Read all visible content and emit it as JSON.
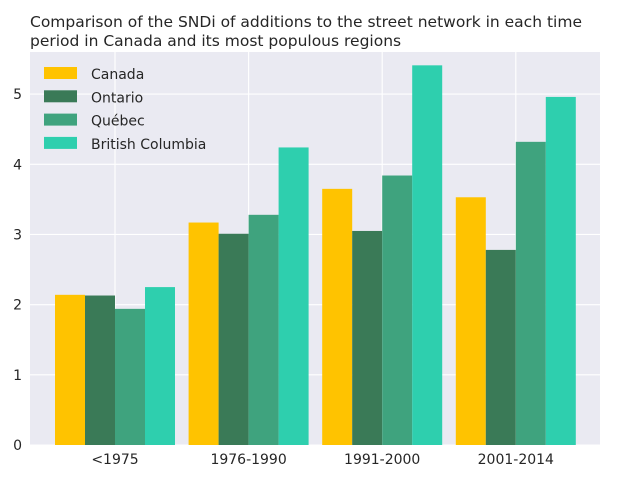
{
  "chart_data": {
    "type": "bar",
    "title_lines": [
      "Comparison of the SNDi of additions to the street network in each time",
      "period in Canada and its most populous regions"
    ],
    "categories": [
      "<1975",
      "1976-1990",
      "1991-2000",
      "2001-2014"
    ],
    "series": [
      {
        "name": "Canada",
        "color": "#FFC300",
        "values": [
          2.14,
          3.17,
          3.65,
          3.53
        ]
      },
      {
        "name": "Ontario",
        "color": "#3A7A57",
        "values": [
          2.13,
          3.01,
          3.05,
          2.78
        ]
      },
      {
        "name": "Québec",
        "color": "#3FA37E",
        "values": [
          1.94,
          3.28,
          3.84,
          4.32
        ]
      },
      {
        "name": "British Columbia",
        "color": "#2ECFAE",
        "values": [
          2.25,
          4.24,
          5.41,
          4.96
        ]
      }
    ],
    "yticks": [
      0,
      1,
      2,
      3,
      4,
      5
    ],
    "ylim": [
      0,
      5.6
    ],
    "xlabel": "",
    "ylabel": "",
    "grid": true,
    "legend_position": "top-left",
    "background": "#EAEAF2"
  }
}
